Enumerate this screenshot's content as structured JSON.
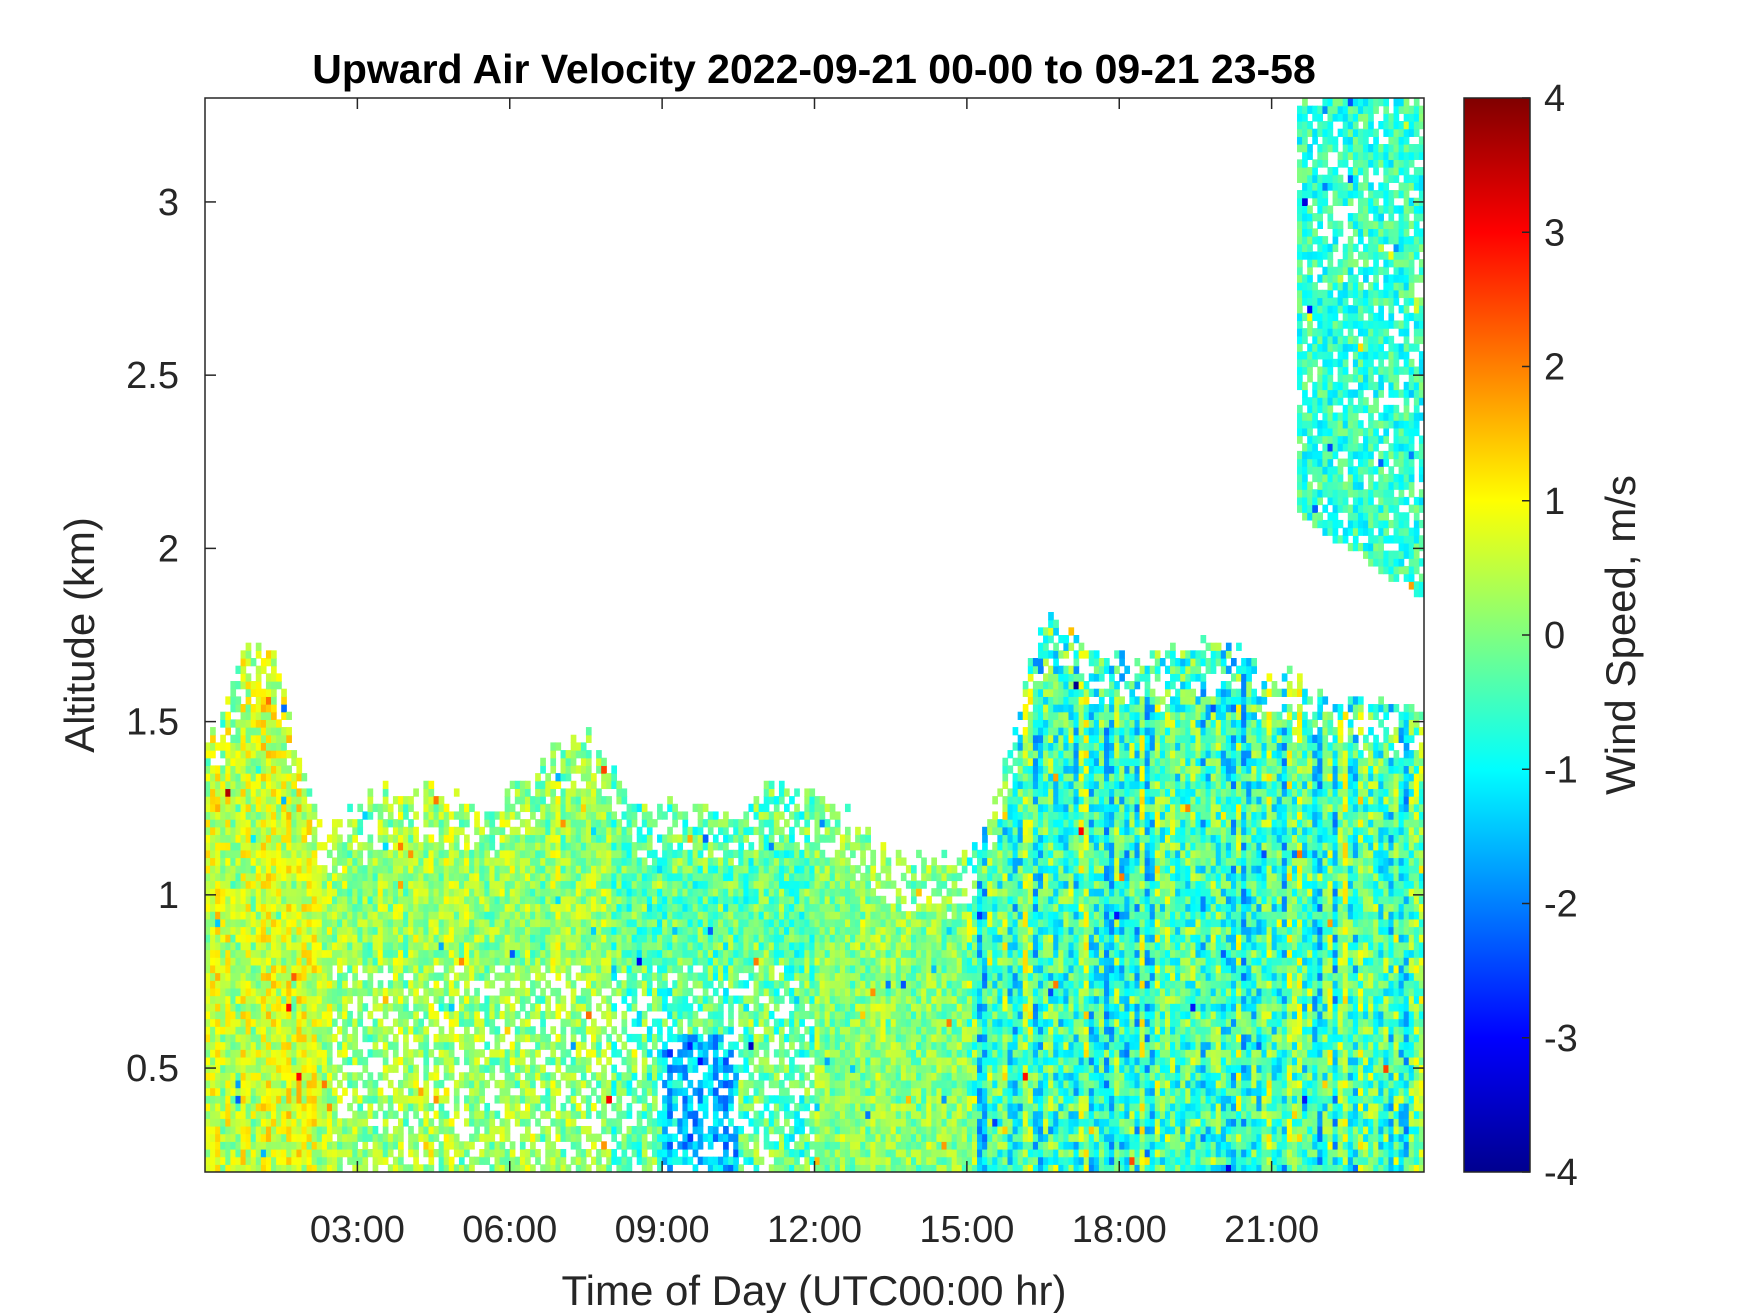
{
  "chart_data": {
    "type": "heatmap",
    "title": "Upward Air Velocity 2022-09-21 00-00 to 09-21 23-58",
    "xlabel": "Time of Day (UTC00:00 hr)",
    "ylabel": "Altitude (km)",
    "colorbar_label": "Wind Speed, m/s",
    "xlim": [
      0,
      24
    ],
    "ylim": [
      0.2,
      3.3
    ],
    "clim": [
      -4,
      4
    ],
    "colormap": "jet",
    "x_ticks": [
      {
        "value": 3,
        "label": "03:00"
      },
      {
        "value": 6,
        "label": "06:00"
      },
      {
        "value": 9,
        "label": "09:00"
      },
      {
        "value": 12,
        "label": "12:00"
      },
      {
        "value": 15,
        "label": "15:00"
      },
      {
        "value": 18,
        "label": "18:00"
      },
      {
        "value": 21,
        "label": "21:00"
      }
    ],
    "y_ticks": [
      {
        "value": 0.5,
        "label": "0.5"
      },
      {
        "value": 1,
        "label": "1"
      },
      {
        "value": 1.5,
        "label": "1.5"
      },
      {
        "value": 2,
        "label": "2"
      },
      {
        "value": 2.5,
        "label": "2.5"
      },
      {
        "value": 3,
        "label": "3"
      }
    ],
    "colorbar_ticks": [
      {
        "value": 4,
        "label": "4"
      },
      {
        "value": 3,
        "label": "3"
      },
      {
        "value": 2,
        "label": "2"
      },
      {
        "value": 1,
        "label": "1"
      },
      {
        "value": 0,
        "label": "0"
      },
      {
        "value": -1,
        "label": "-1"
      },
      {
        "value": -2,
        "label": "-2"
      },
      {
        "value": -3,
        "label": "-3"
      },
      {
        "value": -4,
        "label": "-4"
      }
    ],
    "data_top_envelope": {
      "description_units": "hours, km",
      "time": [
        0,
        0.5,
        1.0,
        1.5,
        2.0,
        2.3,
        3.0,
        3.5,
        4.5,
        5.5,
        6.5,
        7.3,
        8.0,
        8.7,
        9.5,
        10.5,
        11.0,
        11.5,
        12.5,
        13.5,
        14.2,
        15.0,
        15.5,
        16.5,
        17.5,
        18.0,
        19.0,
        20.0,
        21.0,
        22.0,
        22.5,
        23.0,
        24.0
      ],
      "top": [
        1.45,
        1.6,
        1.75,
        1.65,
        1.3,
        1.2,
        1.25,
        1.3,
        1.3,
        1.25,
        1.35,
        1.48,
        1.38,
        1.25,
        1.25,
        1.25,
        1.3,
        1.3,
        1.25,
        1.12,
        1.1,
        1.1,
        1.25,
        1.8,
        1.7,
        1.68,
        1.7,
        1.75,
        1.65,
        1.6,
        1.55,
        1.55,
        1.55
      ]
    },
    "upper_cloud": {
      "time_range": [
        21.5,
        24.0
      ],
      "altitude_range": [
        1.85,
        3.3
      ]
    }
  }
}
